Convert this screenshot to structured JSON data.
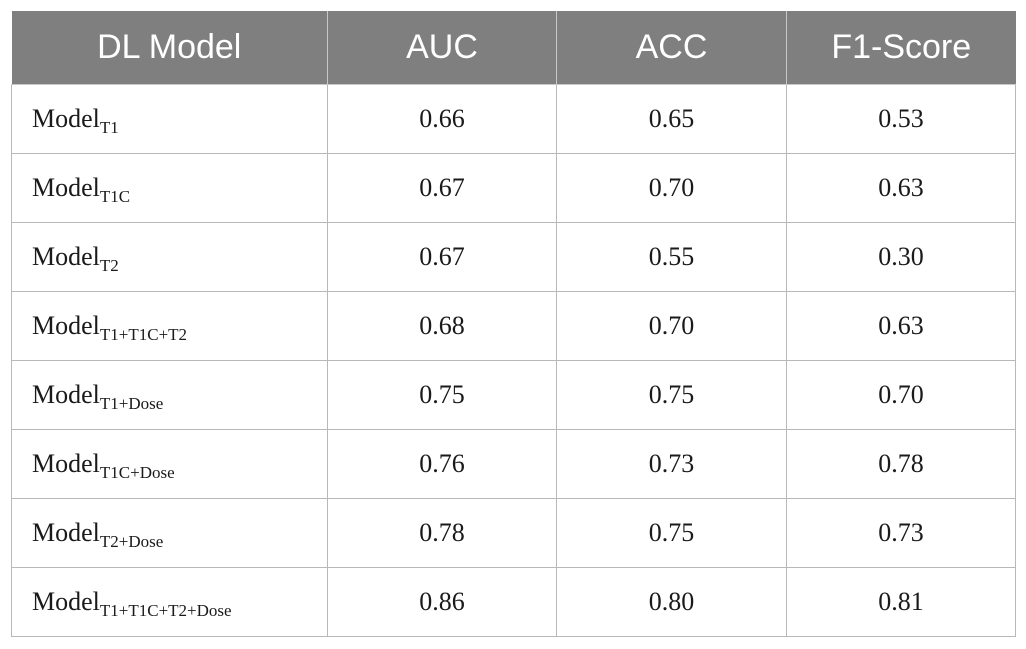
{
  "table": {
    "headers": [
      "DL Model",
      "AUC",
      "ACC",
      "F1-Score"
    ],
    "rows": [
      {
        "model": "Model",
        "subscript": "T1",
        "auc": "0.66",
        "acc": "0.65",
        "f1": "0.53"
      },
      {
        "model": "Model",
        "subscript": "T1C",
        "auc": "0.67",
        "acc": "0.70",
        "f1": "0.63"
      },
      {
        "model": "Model",
        "subscript": "T2",
        "auc": "0.67",
        "acc": "0.55",
        "f1": "0.30"
      },
      {
        "model": "Model",
        "subscript": "T1+T1C+T2",
        "auc": "0.68",
        "acc": "0.70",
        "f1": "0.63"
      },
      {
        "model": "Model",
        "subscript": "T1+Dose",
        "auc": "0.75",
        "acc": "0.75",
        "f1": "0.70"
      },
      {
        "model": "Model",
        "subscript": "T1C+Dose",
        "auc": "0.76",
        "acc": "0.73",
        "f1": "0.78"
      },
      {
        "model": "Model",
        "subscript": "T2+Dose",
        "auc": "0.78",
        "acc": "0.75",
        "f1": "0.73"
      },
      {
        "model": "Model",
        "subscript": "T1+T1C+T2+Dose",
        "auc": "0.86",
        "acc": "0.80",
        "f1": "0.81"
      }
    ]
  },
  "colors": {
    "header_background": "#7f7f7f",
    "header_text": "#ffffff",
    "border": "#b8b8b8",
    "body_text": "#1a1a1a"
  }
}
